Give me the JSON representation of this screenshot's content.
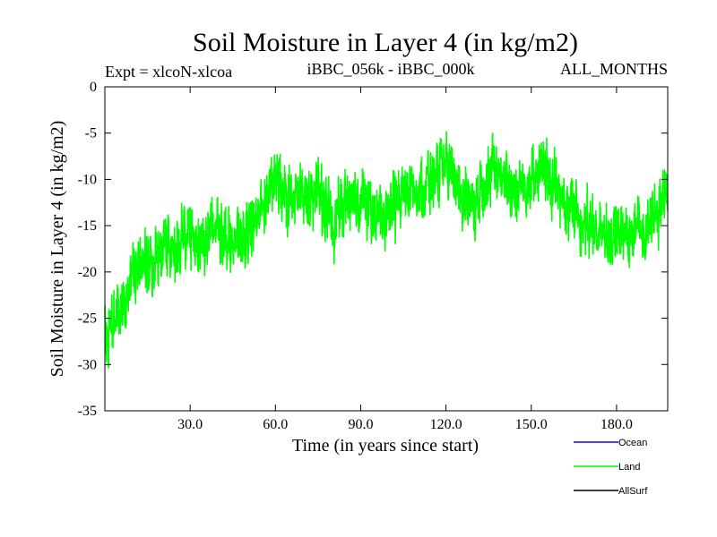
{
  "chart_data": {
    "type": "line",
    "title": "Soil Moisture in Layer 4 (in kg/m2)",
    "subtitle_left": "Expt = xlcoN-xlcoa",
    "subtitle_center": "iBBC_056k - iBBC_000k",
    "subtitle_right": "ALL_MONTHS",
    "xlabel": "Time (in years since start)",
    "ylabel": "Soil Moisture in Layer 4 (in kg/m2)",
    "xlim": [
      0,
      198
    ],
    "ylim": [
      -35,
      0
    ],
    "xticks": [
      30,
      60,
      90,
      120,
      150,
      180
    ],
    "xtick_labels": [
      "30.0",
      "60.0",
      "90.0",
      "120.0",
      "150.0",
      "180.0"
    ],
    "yticks": [
      0,
      -5,
      -10,
      -15,
      -20,
      -25,
      -30,
      -35
    ],
    "ytick_labels": [
      "0",
      "-5",
      "-10",
      "-15",
      "-20",
      "-25",
      "-30",
      "-35"
    ],
    "sampling": "monthly",
    "series": [
      {
        "name": "Land",
        "color": "#00ff00",
        "x": [
          0,
          5,
          10,
          15,
          20,
          25,
          30,
          35,
          40,
          45,
          50,
          55,
          60,
          65,
          70,
          75,
          80,
          85,
          90,
          95,
          100,
          105,
          110,
          115,
          120,
          125,
          130,
          135,
          140,
          145,
          150,
          155,
          160,
          165,
          170,
          175,
          180,
          185,
          190,
          195,
          198
        ],
        "values": [
          -27,
          -24,
          -20,
          -19,
          -18,
          -17,
          -16,
          -16.5,
          -15,
          -17,
          -16,
          -13,
          -10,
          -12,
          -12,
          -11,
          -15,
          -12,
          -12,
          -14,
          -14,
          -11,
          -11,
          -10,
          -9,
          -11,
          -13,
          -9,
          -10,
          -11,
          -10,
          -9,
          -12,
          -13,
          -15,
          -16,
          -16,
          -16,
          -15,
          -13,
          -10
        ]
      },
      {
        "name": "Ocean",
        "color": "#0000ff",
        "x": [],
        "values": []
      },
      {
        "name": "AllSurf",
        "color": "#000000",
        "x": [],
        "values": []
      }
    ],
    "legend": {
      "placement": "bottom-right",
      "entries": [
        {
          "label": "Ocean",
          "color": "#0000ff"
        },
        {
          "label": "Land",
          "color": "#00ff00"
        },
        {
          "label": "AllSurf",
          "color": "#000000"
        }
      ]
    }
  }
}
